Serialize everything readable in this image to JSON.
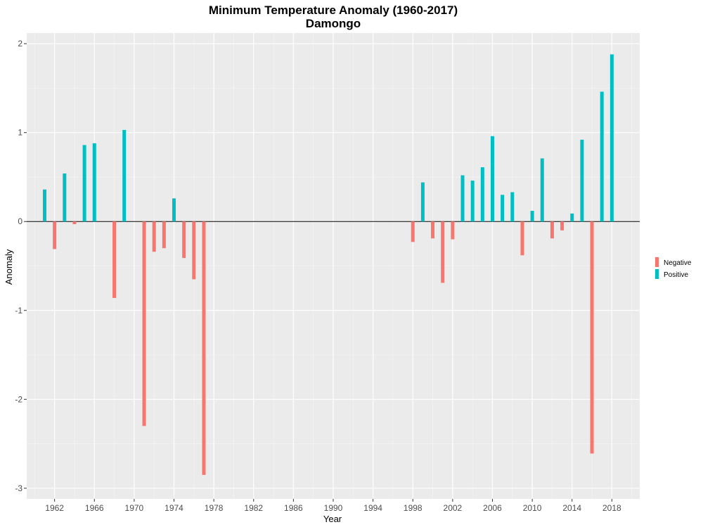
{
  "chart_data": {
    "type": "bar",
    "title": "Minimum Temperature Anomaly (1960-2017)",
    "subtitle": "Damongo",
    "xlabel": "Year",
    "ylabel": "Anomaly",
    "xlim": [
      1959.2,
      2020.8
    ],
    "ylim": [
      -3.12,
      2.12
    ],
    "x_ticks": [
      1962,
      1966,
      1970,
      1974,
      1978,
      1982,
      1986,
      1990,
      1994,
      1998,
      2002,
      2006,
      2010,
      2014,
      2018
    ],
    "y_ticks": [
      -3,
      -2,
      -1,
      0,
      1,
      2
    ],
    "grid": true,
    "legend_position": "right",
    "series": [
      {
        "name": "Negative",
        "color": "#F8766D",
        "points": [
          {
            "x": 1962,
            "y": -0.31
          },
          {
            "x": 1964,
            "y": -0.03
          },
          {
            "x": 1968,
            "y": -0.86
          },
          {
            "x": 1971,
            "y": -2.3
          },
          {
            "x": 1972,
            "y": -0.34
          },
          {
            "x": 1973,
            "y": -0.3
          },
          {
            "x": 1975,
            "y": -0.41
          },
          {
            "x": 1976,
            "y": -0.65
          },
          {
            "x": 1977,
            "y": -2.85
          },
          {
            "x": 1998,
            "y": -0.23
          },
          {
            "x": 2000,
            "y": -0.19
          },
          {
            "x": 2001,
            "y": -0.69
          },
          {
            "x": 2002,
            "y": -0.2
          },
          {
            "x": 2009,
            "y": -0.38
          },
          {
            "x": 2012,
            "y": -0.19
          },
          {
            "x": 2013,
            "y": -0.1
          },
          {
            "x": 2016,
            "y": -2.61
          }
        ]
      },
      {
        "name": "Positive",
        "color": "#00BFC4",
        "points": [
          {
            "x": 1961,
            "y": 0.36
          },
          {
            "x": 1963,
            "y": 0.54
          },
          {
            "x": 1965,
            "y": 0.86
          },
          {
            "x": 1966,
            "y": 0.88
          },
          {
            "x": 1969,
            "y": 1.03
          },
          {
            "x": 1974,
            "y": 0.26
          },
          {
            "x": 1999,
            "y": 0.44
          },
          {
            "x": 2003,
            "y": 0.52
          },
          {
            "x": 2004,
            "y": 0.46
          },
          {
            "x": 2005,
            "y": 0.61
          },
          {
            "x": 2006,
            "y": 0.96
          },
          {
            "x": 2007,
            "y": 0.3
          },
          {
            "x": 2008,
            "y": 0.33
          },
          {
            "x": 2010,
            "y": 0.12
          },
          {
            "x": 2011,
            "y": 0.71
          },
          {
            "x": 2014,
            "y": 0.09
          },
          {
            "x": 2015,
            "y": 0.92
          },
          {
            "x": 2017,
            "y": 1.46
          },
          {
            "x": 2018,
            "y": 1.88
          }
        ]
      }
    ]
  }
}
